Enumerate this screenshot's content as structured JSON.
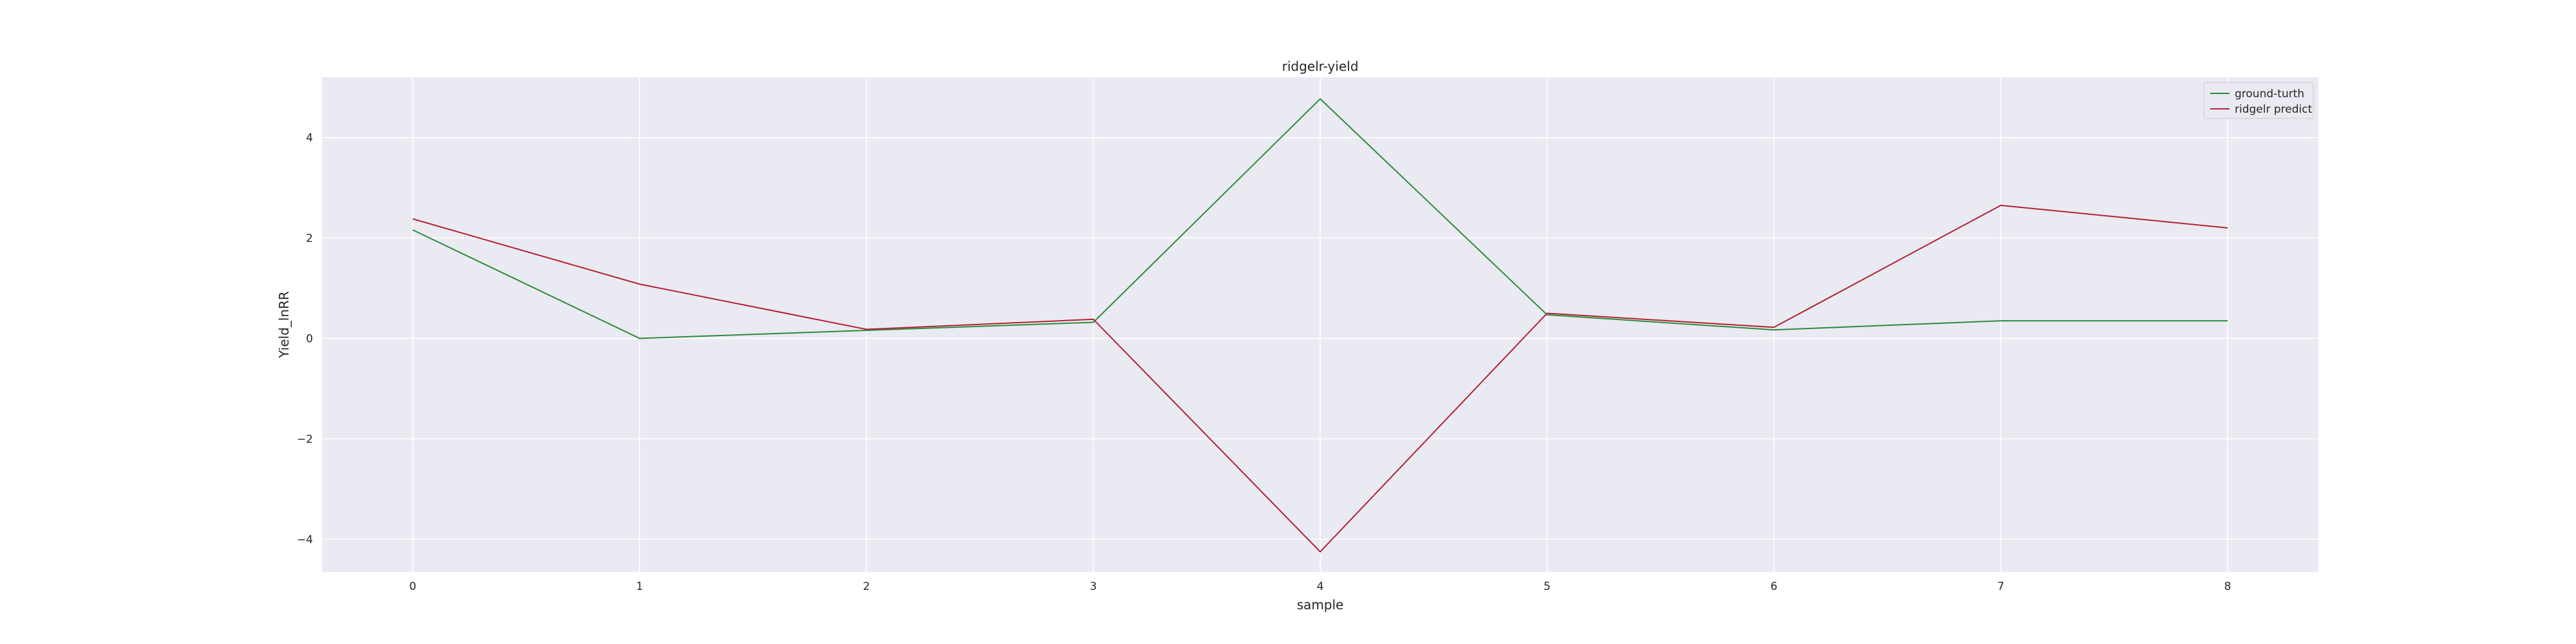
{
  "chart_data": {
    "type": "line",
    "title": "ridgelr-yield",
    "xlabel": "sample",
    "ylabel": "Yield_lnRR",
    "x": [
      0,
      1,
      2,
      3,
      4,
      5,
      6,
      7,
      8
    ],
    "xlim": [
      -0.4,
      8.4
    ],
    "ylim": [
      -4.65,
      5.2
    ],
    "xticks": [
      0,
      1,
      2,
      3,
      4,
      5,
      6,
      7,
      8
    ],
    "yticks": [
      -4,
      -2,
      0,
      2,
      4
    ],
    "ytick_labels": [
      "−4",
      "−2",
      "0",
      "2",
      "4"
    ],
    "grid": true,
    "legend_position": "top-right",
    "series": [
      {
        "name": "ground-turth",
        "color": "#2e8b3d",
        "values": [
          2.16,
          0.0,
          0.16,
          0.32,
          4.77,
          0.47,
          0.17,
          0.35,
          0.35
        ]
      },
      {
        "name": "ridgelr predict",
        "color": "#b22234",
        "values": [
          2.38,
          1.08,
          0.18,
          0.38,
          -4.25,
          0.5,
          0.22,
          2.65,
          2.2
        ]
      }
    ]
  }
}
